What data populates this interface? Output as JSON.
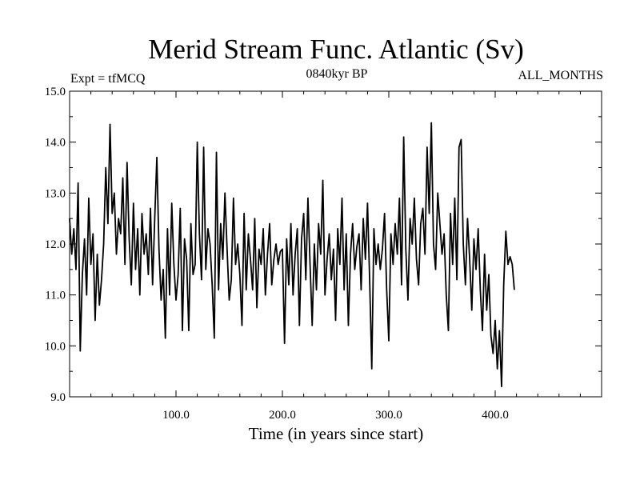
{
  "chart_data": {
    "type": "line",
    "title": "Merid Stream Func. Atlantic (Sv)",
    "subtitle_left": "Expt = tfMCQ",
    "subtitle_center": "0840kyr BP",
    "subtitle_right": "ALL_MONTHS",
    "xlabel": "Time (in years since start)",
    "ylabel": "",
    "xlim": [
      0,
      500
    ],
    "ylim": [
      9.0,
      15.0
    ],
    "x_ticks": [
      100,
      200,
      300,
      400
    ],
    "x_tick_labels": [
      "100.0",
      "200.0",
      "300.0",
      "400.0"
    ],
    "y_ticks": [
      9,
      10,
      11,
      12,
      13,
      14,
      15
    ],
    "y_tick_labels": [
      "9.0",
      "10.0",
      "11.0",
      "12.0",
      "13.0",
      "14.0",
      "15.0"
    ],
    "grid": false,
    "x_step": 2,
    "series": [
      {
        "name": "Merid Stream Func. Atlantic",
        "color": "#000000",
        "values": [
          12.5,
          11.8,
          12.3,
          11.5,
          13.2,
          9.9,
          11.4,
          12.1,
          11.0,
          12.9,
          11.6,
          12.2,
          10.5,
          11.8,
          10.8,
          11.3,
          12.0,
          13.5,
          12.4,
          14.35,
          12.6,
          13.0,
          11.8,
          12.5,
          12.2,
          13.3,
          11.6,
          13.6,
          12.1,
          11.2,
          12.8,
          11.5,
          12.3,
          11.0,
          12.6,
          11.8,
          12.2,
          11.4,
          12.7,
          11.2,
          12.5,
          13.7,
          11.9,
          10.9,
          11.5,
          10.15,
          12.3,
          11.0,
          12.8,
          11.6,
          10.9,
          11.4,
          12.7,
          10.3,
          12.1,
          11.7,
          10.3,
          12.4,
          11.4,
          11.6,
          14.0,
          12.2,
          11.3,
          13.9,
          11.5,
          12.3,
          12.0,
          11.2,
          10.15,
          13.8,
          11.1,
          12.4,
          11.7,
          13.0,
          11.9,
          10.9,
          11.3,
          12.9,
          11.6,
          12.0,
          11.4,
          10.4,
          12.6,
          11.1,
          12.2,
          11.7,
          11.1,
          12.5,
          10.75,
          11.9,
          11.6,
          12.3,
          11.0,
          11.8,
          12.4,
          11.2,
          11.7,
          12.0,
          11.6,
          11.85,
          11.9,
          10.05,
          12.1,
          11.2,
          12.4,
          11.0,
          11.8,
          12.3,
          10.4,
          12.1,
          12.6,
          11.3,
          12.9,
          11.6,
          10.4,
          12.0,
          11.1,
          12.4,
          11.8,
          13.25,
          11.0,
          11.7,
          12.2,
          11.3,
          11.9,
          10.5,
          12.3,
          11.6,
          12.9,
          11.1,
          12.2,
          10.4,
          11.8,
          12.4,
          11.5,
          11.95,
          12.2,
          11.1,
          12.5,
          11.7,
          12.8,
          11.3,
          9.55,
          12.3,
          11.6,
          12.0,
          11.5,
          11.9,
          12.6,
          11.1,
          10.1,
          12.2,
          11.6,
          12.4,
          11.8,
          12.9,
          11.2,
          14.1,
          11.9,
          10.9,
          12.5,
          12.0,
          12.9,
          11.7,
          11.2,
          12.4,
          12.7,
          11.8,
          13.9,
          12.6,
          14.38,
          12.0,
          11.5,
          13.0,
          12.4,
          11.8,
          12.2,
          11.0,
          10.3,
          12.6,
          11.6,
          12.9,
          11.3,
          13.9,
          14.05,
          12.0,
          11.2,
          12.5,
          11.7,
          10.7,
          12.1,
          11.5,
          12.3,
          11.1,
          10.3,
          11.8,
          10.7,
          11.4,
          10.2,
          9.85,
          10.5,
          9.55,
          10.3,
          9.2,
          11.2,
          12.25,
          11.6,
          11.75,
          11.6,
          11.1
        ]
      }
    ]
  }
}
